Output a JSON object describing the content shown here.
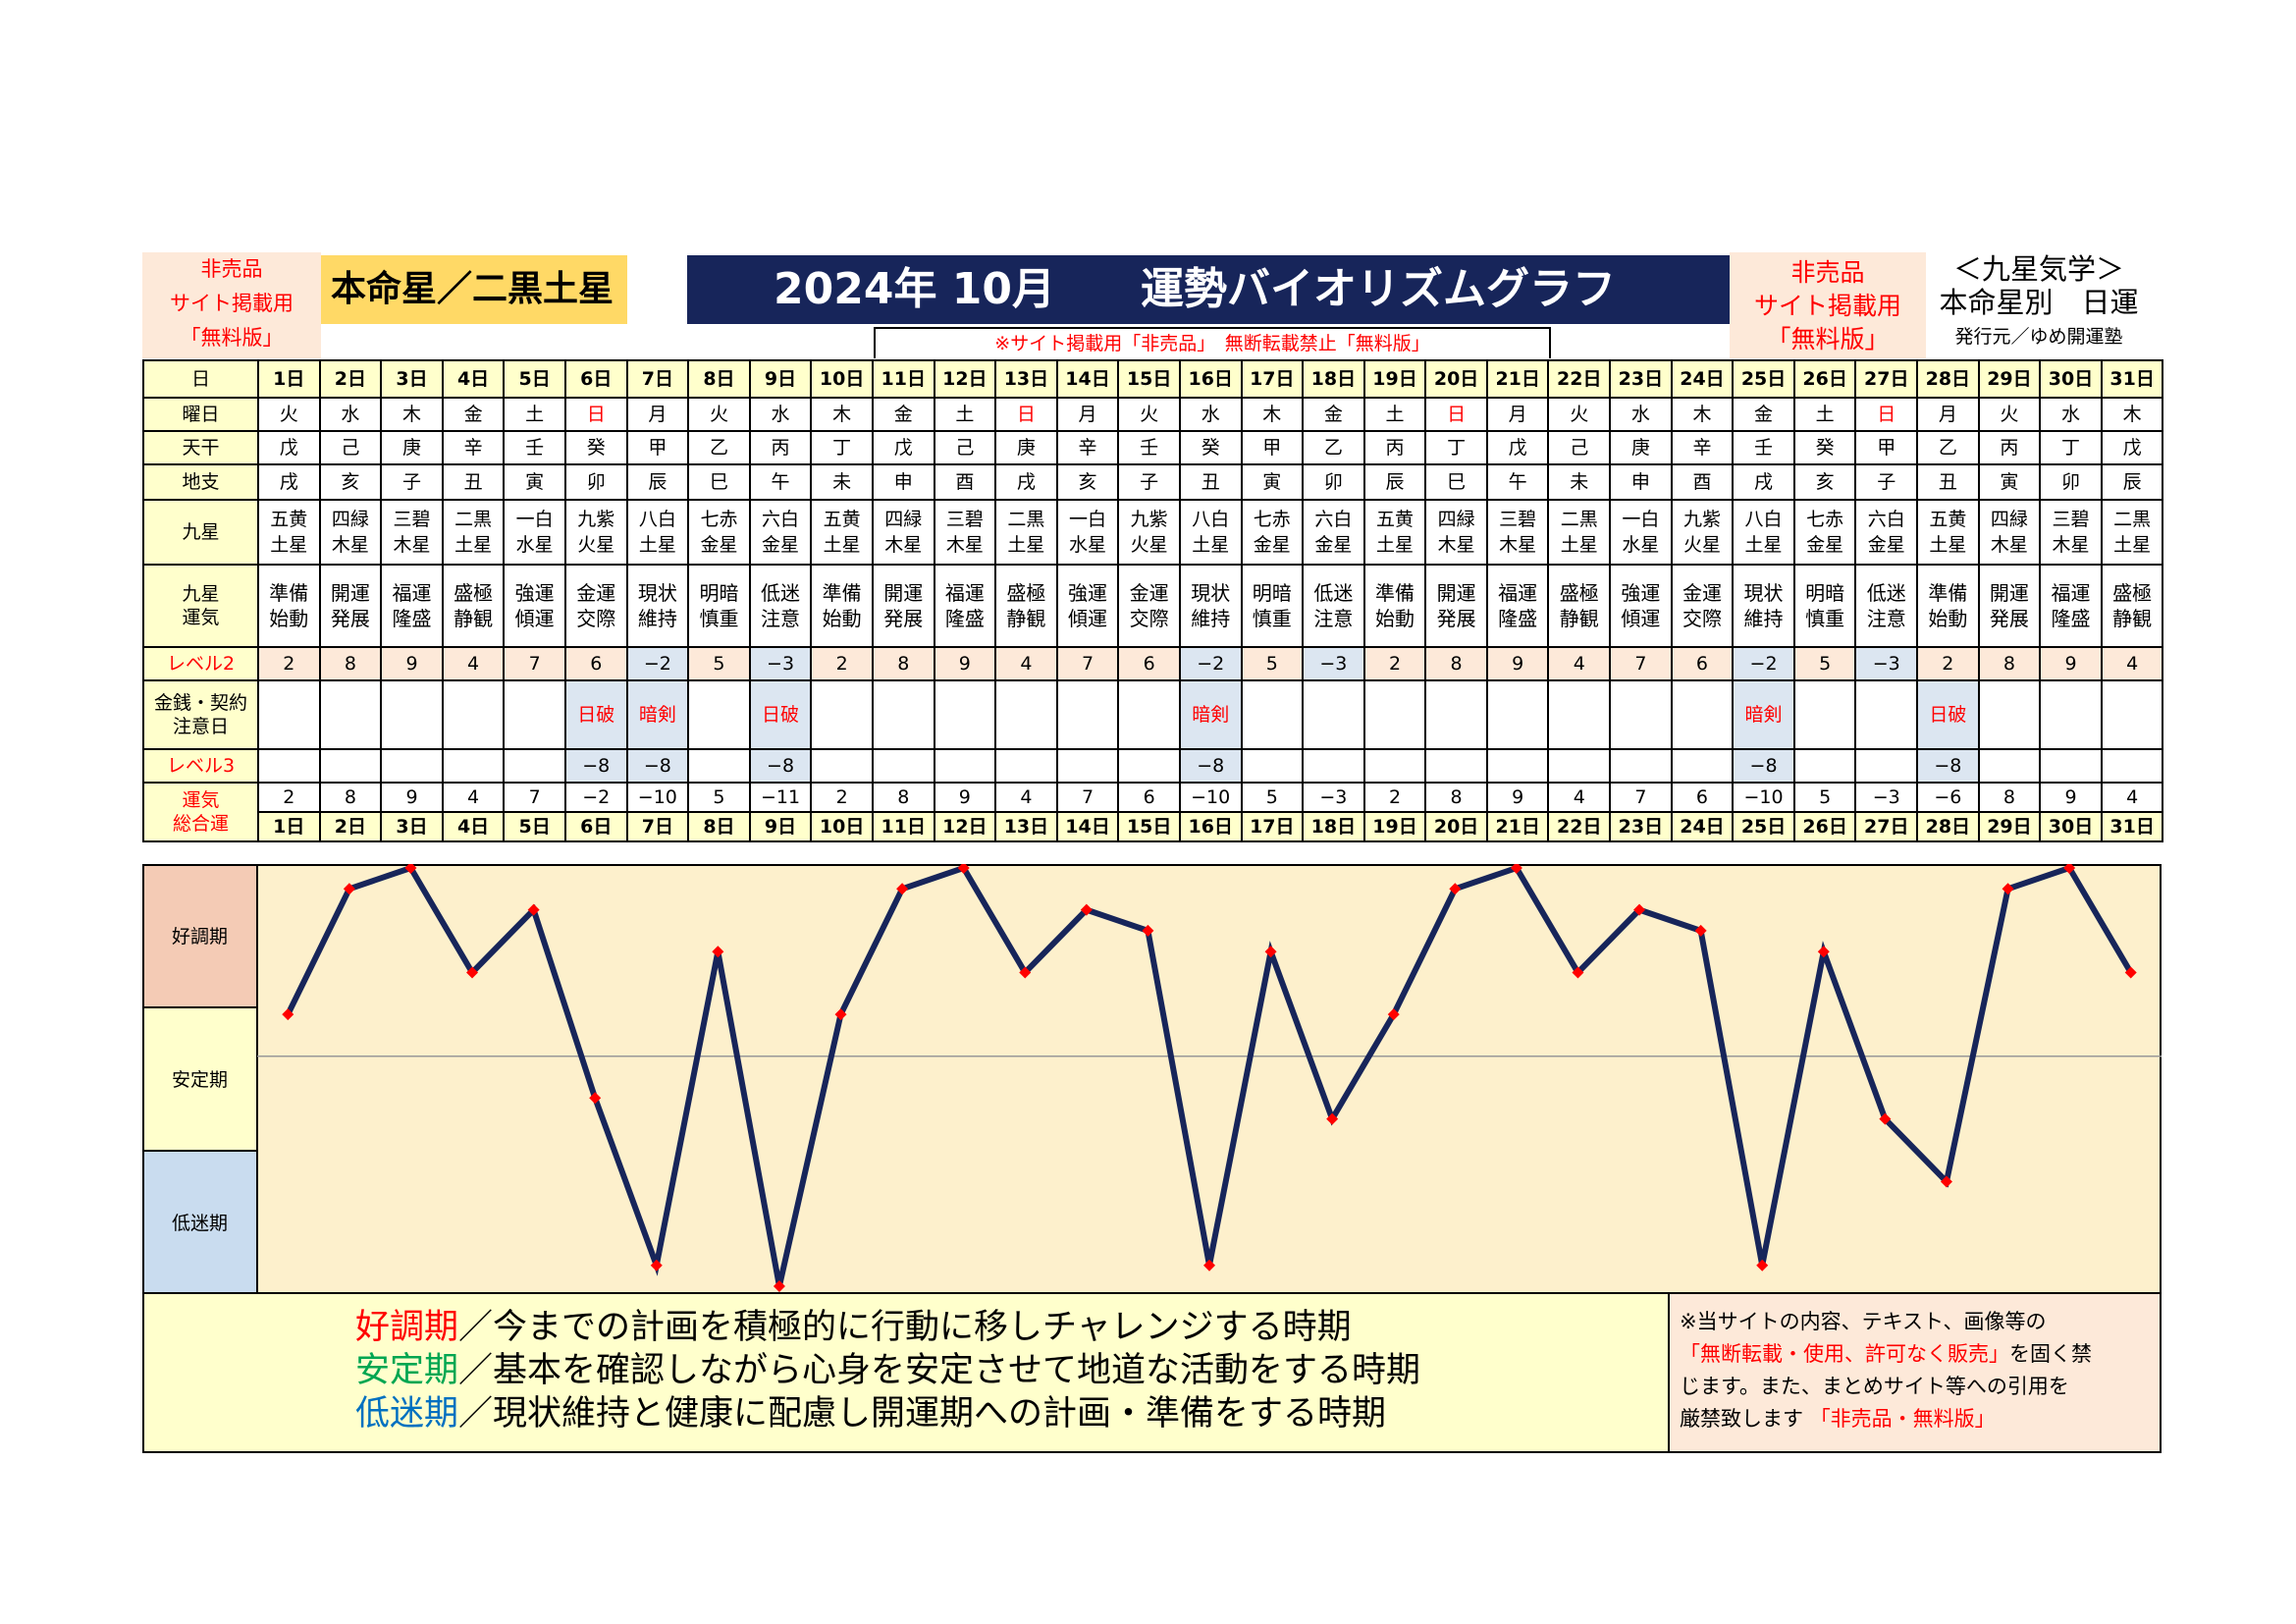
{
  "header": {
    "left_label": [
      "非売品",
      "サイト掲載用",
      "「無料版」"
    ],
    "honmei": "本命星／二黒土星",
    "title_year_month": "2024年 10月",
    "title_main": "運勢バイオリズムグラフ",
    "notice": "※サイト掲載用「非売品」　無断転載禁止「無料版」",
    "right_label": [
      "非売品",
      "サイト掲載用",
      "「無料版」"
    ],
    "kyusei_title": "＜九星気学＞",
    "kyusei_sub": "本命星別　日運",
    "publisher": "発行元／ゆめ開運塾"
  },
  "row_labels": {
    "day": "日",
    "weekday": "曜日",
    "tenkan": "天干",
    "chishi": "地支",
    "kyusei": "九星",
    "kyusei_unki": "九星\n運気",
    "level2": "レベル2",
    "kinsen": "金銭・契約\n注意日",
    "level3": "レベル3",
    "total": "運気\n総合運"
  },
  "colors": {
    "red_day": "#ff0000",
    "line": "#17255a",
    "marker": "#ff0000",
    "good_band": "#f4cbb5",
    "stable_band": "#ffffcc",
    "low_band": "#c9dcef",
    "title_bg": "#17255a"
  },
  "days": [
    "1日",
    "2日",
    "3日",
    "4日",
    "5日",
    "6日",
    "7日",
    "8日",
    "9日",
    "10日",
    "11日",
    "12日",
    "13日",
    "14日",
    "15日",
    "16日",
    "17日",
    "18日",
    "19日",
    "20日",
    "21日",
    "22日",
    "23日",
    "24日",
    "25日",
    "26日",
    "27日",
    "28日",
    "29日",
    "30日",
    "31日"
  ],
  "weekdays": [
    "火",
    "水",
    "木",
    "金",
    "土",
    "日",
    "月",
    "火",
    "水",
    "木",
    "金",
    "土",
    "日",
    "月",
    "火",
    "水",
    "木",
    "金",
    "土",
    "日",
    "月",
    "火",
    "水",
    "木",
    "金",
    "土",
    "日",
    "月",
    "火",
    "水",
    "木"
  ],
  "tenkan": [
    "戊",
    "己",
    "庚",
    "辛",
    "壬",
    "癸",
    "甲",
    "乙",
    "丙",
    "丁",
    "戊",
    "己",
    "庚",
    "辛",
    "壬",
    "癸",
    "甲",
    "乙",
    "丙",
    "丁",
    "戊",
    "己",
    "庚",
    "辛",
    "壬",
    "癸",
    "甲",
    "乙",
    "丙",
    "丁",
    "戊"
  ],
  "chishi": [
    "戌",
    "亥",
    "子",
    "丑",
    "寅",
    "卯",
    "辰",
    "巳",
    "午",
    "未",
    "申",
    "酉",
    "戌",
    "亥",
    "子",
    "丑",
    "寅",
    "卯",
    "辰",
    "巳",
    "午",
    "未",
    "申",
    "酉",
    "戌",
    "亥",
    "子",
    "丑",
    "寅",
    "卯",
    "辰"
  ],
  "kyusei": [
    "五黄\n土星",
    "四緑\n木星",
    "三碧\n木星",
    "二黒\n土星",
    "一白\n水星",
    "九紫\n火星",
    "八白\n土星",
    "七赤\n金星",
    "六白\n金星",
    "五黄\n土星",
    "四緑\n木星",
    "三碧\n木星",
    "二黒\n土星",
    "一白\n水星",
    "九紫\n火星",
    "八白\n土星",
    "七赤\n金星",
    "六白\n金星",
    "五黄\n土星",
    "四緑\n木星",
    "三碧\n木星",
    "二黒\n土星",
    "一白\n水星",
    "九紫\n火星",
    "八白\n土星",
    "七赤\n金星",
    "六白\n金星",
    "五黄\n土星",
    "四緑\n木星",
    "三碧\n木星",
    "二黒\n土星"
  ],
  "unki": [
    "準備\n始動",
    "開運\n発展",
    "福運\n隆盛",
    "盛極\n静観",
    "強運\n傾運",
    "金運\n交際",
    "現状\n維持",
    "明暗\n慎重",
    "低迷\n注意",
    "準備\n始動",
    "開運\n発展",
    "福運\n隆盛",
    "盛極\n静観",
    "強運\n傾運",
    "金運\n交際",
    "現状\n維持",
    "明暗\n慎重",
    "低迷\n注意",
    "準備\n始動",
    "開運\n発展",
    "福運\n隆盛",
    "盛極\n静観",
    "強運\n傾運",
    "金運\n交際",
    "現状\n維持",
    "明暗\n慎重",
    "低迷\n注意",
    "準備\n始動",
    "開運\n発展",
    "福運\n隆盛",
    "盛極\n静観"
  ],
  "level2": [
    "2",
    "8",
    "9",
    "4",
    "7",
    "6",
    "−2",
    "5",
    "−3",
    "2",
    "8",
    "9",
    "4",
    "7",
    "6",
    "−2",
    "5",
    "−3",
    "2",
    "8",
    "9",
    "4",
    "7",
    "6",
    "−2",
    "5",
    "−3",
    "2",
    "8",
    "9",
    "4"
  ],
  "kinsen": [
    "",
    "",
    "",
    "",
    "",
    "日破",
    "暗剣",
    "",
    "日破",
    "",
    "",
    "",
    "",
    "",
    "",
    "暗剣",
    "",
    "",
    "",
    "",
    "",
    "",
    "",
    "",
    "暗剣",
    "",
    "",
    "日破",
    "",
    "",
    ""
  ],
  "level3": [
    "",
    "",
    "",
    "",
    "",
    "−8",
    "−8",
    "",
    "−8",
    "",
    "",
    "",
    "",
    "",
    "",
    "−8",
    "",
    "",
    "",
    "",
    "",
    "",
    "",
    "",
    "−8",
    "",
    "",
    "−8",
    "",
    "",
    ""
  ],
  "total": [
    "2",
    "8",
    "9",
    "4",
    "7",
    "−2",
    "−10",
    "5",
    "−11",
    "2",
    "8",
    "9",
    "4",
    "7",
    "6",
    "−10",
    "5",
    "−3",
    "2",
    "8",
    "9",
    "4",
    "7",
    "6",
    "−10",
    "5",
    "−3",
    "−6",
    "8",
    "9",
    "4"
  ],
  "chart_data": {
    "type": "line",
    "categories": [
      "1日",
      "2日",
      "3日",
      "4日",
      "5日",
      "6日",
      "7日",
      "8日",
      "9日",
      "10日",
      "11日",
      "12日",
      "13日",
      "14日",
      "15日",
      "16日",
      "17日",
      "18日",
      "19日",
      "20日",
      "21日",
      "22日",
      "23日",
      "24日",
      "25日",
      "26日",
      "27日",
      "28日",
      "29日",
      "30日",
      "31日"
    ],
    "values": [
      2,
      8,
      9,
      4,
      7,
      -2,
      -10,
      5,
      -11,
      2,
      8,
      9,
      4,
      7,
      6,
      -10,
      5,
      -3,
      2,
      8,
      9,
      4,
      7,
      6,
      -10,
      5,
      -3,
      -6,
      8,
      9,
      4
    ],
    "ylim": [
      -11,
      9
    ],
    "bands": [
      "好調期",
      "安定期",
      "低迷期"
    ]
  },
  "footer": {
    "lines": [
      {
        "term": "好調期",
        "text": "／今までの計画を積極的に行動に移しチャレンジする時期",
        "color": "#ff0000"
      },
      {
        "term": "安定期",
        "text": "／基本を確認しながら心身を安定させて地道な活動をする時期",
        "color": "#00a651"
      },
      {
        "term": "低迷期",
        "text": "／現状維持と健康に配慮し開運期への計画・準備をする時期",
        "color": "#0070c0"
      }
    ],
    "right_line1": "※当サイトの内容、テキスト、画像等の",
    "right_red": "「無断転載・使用、許可なく販売」",
    "right_line2a": "を固く禁",
    "right_line3": "じます。また、まとめサイト等への引用を",
    "right_line4": "厳禁致します",
    "right_red2": "「非売品・無料版」"
  }
}
